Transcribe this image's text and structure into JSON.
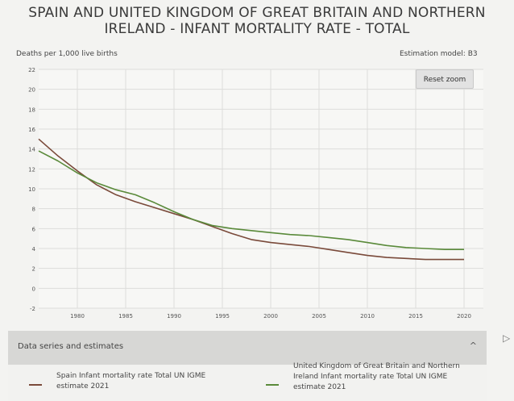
{
  "title_line1": "SPAIN AND UNITED KINGDOM OF GREAT BRITAIN AND NORTHERN",
  "title_line2": "IRELAND - INFANT MORTALITY RATE - TOTAL",
  "ylabel": "Deaths per 1,000 live births",
  "estimation": "Estimation model: B3",
  "reset_zoom": "Reset zoom",
  "panel_label": "Data series and estimates",
  "panel_chevron": "^",
  "legend": [
    {
      "label": "Spain Infant mortality rate Total UN IGME estimate 2021",
      "color": "#7a4a3a"
    },
    {
      "label": "United Kingdom of Great Britain and Northern Ireland Infant mortality rate Total UN IGME estimate 2021",
      "color": "#5a8a3a"
    }
  ],
  "chart_data": {
    "type": "line",
    "ylabel": "Deaths per 1,000 live births",
    "ylim": [
      -2,
      22
    ],
    "xlim": [
      1976,
      2022
    ],
    "yticks": [
      -2,
      0,
      2,
      4,
      6,
      8,
      10,
      12,
      14,
      16,
      18,
      20,
      22
    ],
    "xticks": [
      1980,
      1985,
      1990,
      1995,
      2000,
      2005,
      2010,
      2015,
      2020
    ],
    "grid": true,
    "series": [
      {
        "name": "Spain Infant mortality rate Total UN IGME estimate 2021",
        "color": "#7a4a3a",
        "x": [
          1976,
          1978,
          1980,
          1982,
          1984,
          1986,
          1988,
          1990,
          1992,
          1994,
          1996,
          1998,
          2000,
          2002,
          2004,
          2006,
          2008,
          2010,
          2012,
          2014,
          2016,
          2018,
          2020
        ],
        "values": [
          15.0,
          13.3,
          11.8,
          10.4,
          9.4,
          8.7,
          8.1,
          7.5,
          6.9,
          6.2,
          5.5,
          4.9,
          4.6,
          4.4,
          4.2,
          3.9,
          3.6,
          3.3,
          3.1,
          3.0,
          2.9,
          2.9,
          2.9
        ]
      },
      {
        "name": "United Kingdom of Great Britain and Northern Ireland Infant mortality rate Total UN IGME estimate 2021",
        "color": "#5a8a3a",
        "x": [
          1976,
          1978,
          1980,
          1982,
          1984,
          1986,
          1988,
          1990,
          1992,
          1994,
          1996,
          1998,
          2000,
          2002,
          2004,
          2006,
          2008,
          2010,
          2012,
          2014,
          2016,
          2018,
          2020
        ],
        "values": [
          13.8,
          12.8,
          11.6,
          10.6,
          9.9,
          9.4,
          8.6,
          7.7,
          6.9,
          6.3,
          6.0,
          5.8,
          5.6,
          5.4,
          5.3,
          5.1,
          4.9,
          4.6,
          4.3,
          4.1,
          4.0,
          3.9,
          3.9
        ]
      }
    ]
  }
}
